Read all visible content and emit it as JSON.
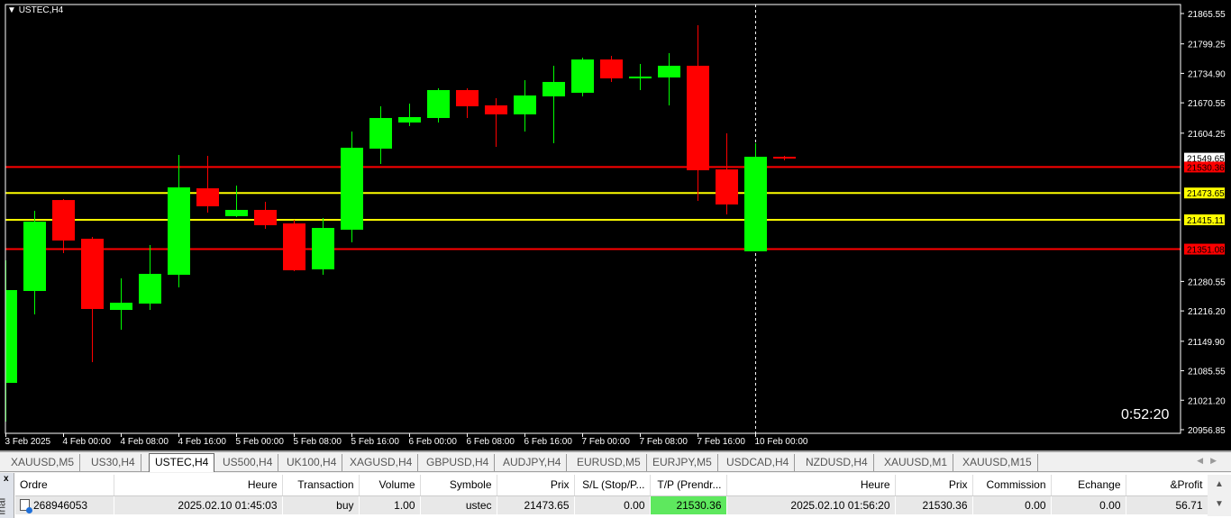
{
  "chart": {
    "symbol_label": "USTEC,H4",
    "timer": "0:52:20",
    "current_price": 21549.65,
    "price_ticks": [
      "21865.55",
      "21799.25",
      "21734.90",
      "21670.55",
      "21604.25",
      "21280.55",
      "21216.20",
      "21149.90",
      "21085.55",
      "21021.20",
      "20956.85"
    ],
    "levels": [
      {
        "price": "21530.36",
        "color": "#ff0000"
      },
      {
        "price": "21473.65",
        "color": "#ffff00"
      },
      {
        "price": "21415.11",
        "color": "#ffff00"
      },
      {
        "price": "21351.08",
        "color": "#ff0000"
      }
    ],
    "time_labels": [
      {
        "index": 0,
        "text": "3 Feb 2025"
      },
      {
        "index": 2,
        "text": "4 Feb 00:00"
      },
      {
        "index": 4,
        "text": "4 Feb 08:00"
      },
      {
        "index": 6,
        "text": "4 Feb 16:00"
      },
      {
        "index": 8,
        "text": "5 Feb 00:00"
      },
      {
        "index": 10,
        "text": "5 Feb 08:00"
      },
      {
        "index": 12,
        "text": "5 Feb 16:00"
      },
      {
        "index": 14,
        "text": "6 Feb 00:00"
      },
      {
        "index": 16,
        "text": "6 Feb 08:00"
      },
      {
        "index": 18,
        "text": "6 Feb 16:00"
      },
      {
        "index": 20,
        "text": "7 Feb 00:00"
      },
      {
        "index": 22,
        "text": "7 Feb 08:00"
      },
      {
        "index": 24,
        "text": "7 Feb 16:00"
      },
      {
        "index": 26,
        "text": "10 Feb 00:00"
      }
    ],
    "crosshair_index": 26,
    "bull_color": "#00ff00",
    "bear_color": "#ff0000",
    "candles": [
      [
        21059.1,
        21326.6,
        20974.5,
        21261.7
      ],
      [
        21259.7,
        21434.8,
        21208.6,
        21411.2
      ],
      [
        21458.3,
        21460.3,
        21342.3,
        21369.9
      ],
      [
        21373.8,
        21377.7,
        21104.3,
        21220.4
      ],
      [
        21218.4,
        21287.2,
        21175.1,
        21234.1
      ],
      [
        21232.2,
        21360.0,
        21218.4,
        21297.1
      ],
      [
        21295.1,
        21556.7,
        21267.6,
        21485.9
      ],
      [
        21483.9,
        21554.8,
        21430.8,
        21444.6
      ],
      [
        21423.0,
        21489.8,
        21421.0,
        21436.7
      ],
      [
        21436.7,
        21454.4,
        21395.4,
        21403.3
      ],
      [
        21407.2,
        21415.1,
        21303.0,
        21304.9
      ],
      [
        21306.9,
        21419.0,
        21295.1,
        21397.4
      ],
      [
        21393.5,
        21607.9,
        21365.9,
        21572.5
      ],
      [
        21570.5,
        21663.0,
        21537.0,
        21637.4
      ],
      [
        21627.6,
        21668.9,
        21619.7,
        21639.4
      ],
      [
        21637.4,
        21702.3,
        21627.6,
        21698.4
      ],
      [
        21698.4,
        21702.3,
        21637.4,
        21663.0
      ],
      [
        21665.0,
        21680.7,
        21574.4,
        21645.3
      ],
      [
        21645.3,
        21720.0,
        21607.9,
        21686.6
      ],
      [
        21684.6,
        21751.5,
        21582.3,
        21716.1
      ],
      [
        21692.5,
        21769.2,
        21684.6,
        21765.2
      ],
      [
        21765.2,
        21773.1,
        21716.1,
        21723.9
      ],
      [
        21723.9,
        21755.4,
        21698.4,
        21727.9
      ],
      [
        21725.9,
        21779.0,
        21665.0,
        21751.5
      ],
      [
        21751.5,
        21840.0,
        21456.4,
        21523.3
      ],
      [
        21525.2,
        21603.9,
        21426.9,
        21448.6
      ],
      [
        21346.3,
        21582.3,
        21346.3,
        21552.8
      ],
      [
        21552.8,
        21554.8,
        21544.9,
        21549.65
      ]
    ]
  },
  "tabs": [
    {
      "label": "XAUUSD,M5"
    },
    {
      "label": "US30,H4"
    },
    {
      "label": "USTEC,H4",
      "active": true
    },
    {
      "label": "US500,H4"
    },
    {
      "label": "UK100,H4"
    },
    {
      "label": "XAGUSD,H4"
    },
    {
      "label": "GBPUSD,H4"
    },
    {
      "label": "AUDJPY,H4"
    },
    {
      "label": "EURUSD,M5"
    },
    {
      "label": "EURJPY,M5"
    },
    {
      "label": "USDCAD,H4"
    },
    {
      "label": "NZDUSD,H4"
    },
    {
      "label": "XAUUSD,M1"
    },
    {
      "label": "XAUUSD,M15"
    }
  ],
  "terminal": {
    "side_label": "inal",
    "close": "x",
    "columns": [
      "Ordre",
      "Heure",
      "Transaction",
      "Volume",
      "Symbole",
      "Prix",
      "S/L (Stop/P...",
      "T/P (Prendr...",
      "Heure",
      "Prix",
      "Commission",
      "Echange",
      "&Profit"
    ],
    "rows": [
      [
        "268946053",
        "2025.02.10 01:45:03",
        "buy",
        "1.00",
        "ustec",
        "21473.65",
        "0.00",
        "21530.36",
        "2025.02.10 01:56:20",
        "21530.36",
        "0.00",
        "0.00",
        "56.71"
      ]
    ],
    "tp_highlight": "#5ee85e"
  }
}
